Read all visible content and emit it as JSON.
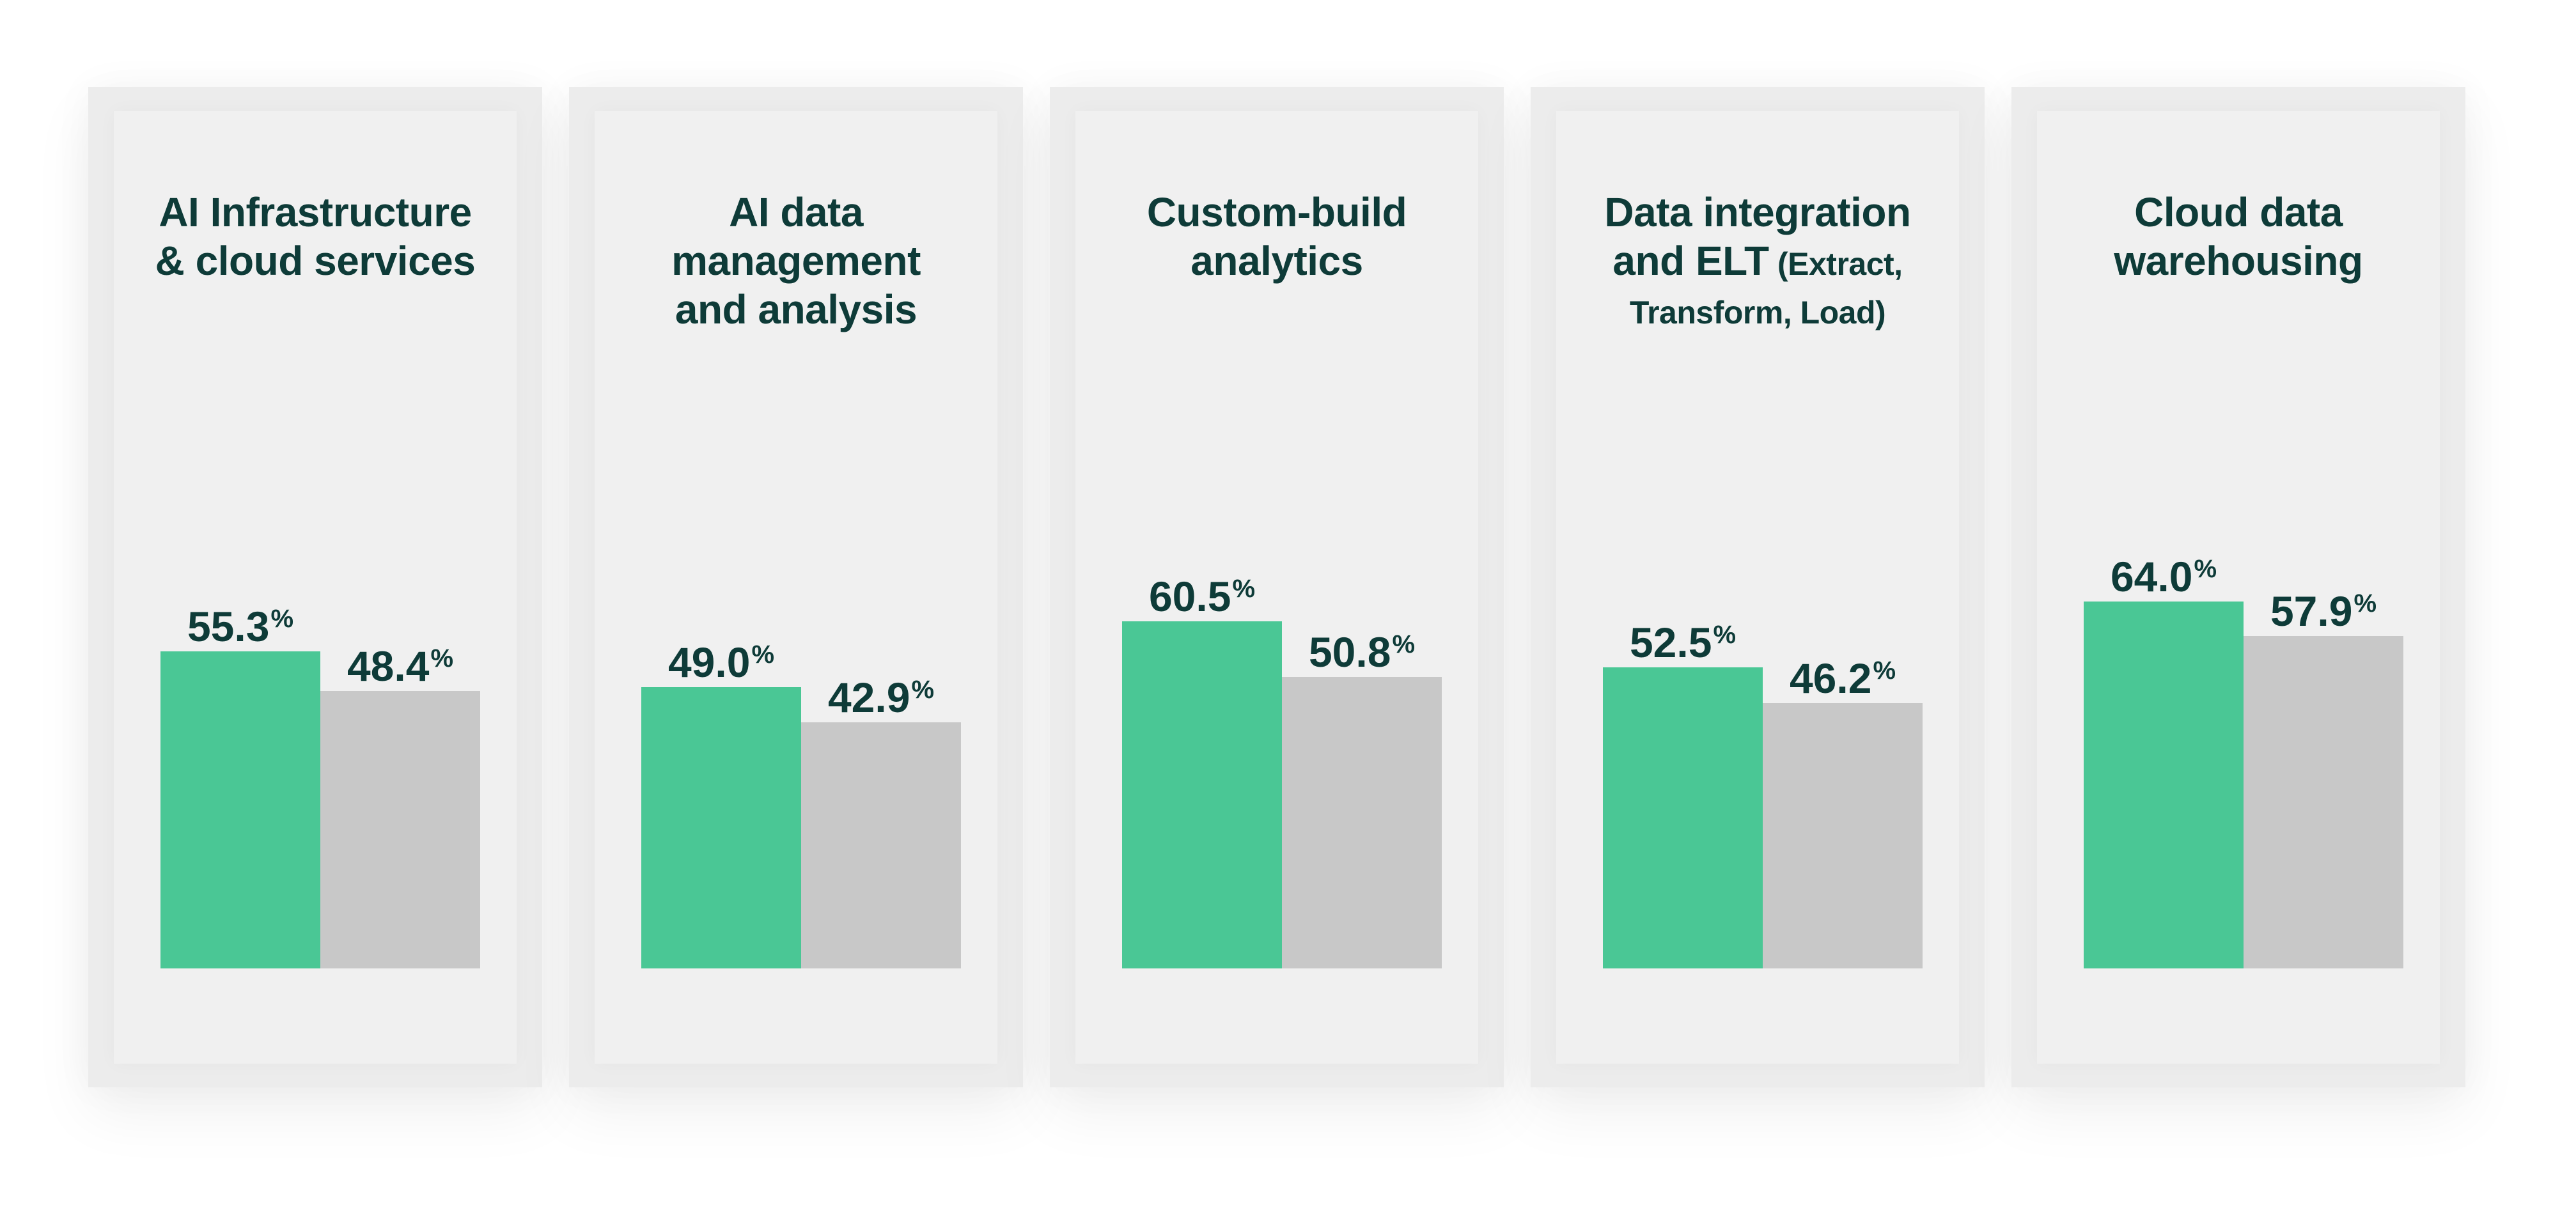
{
  "chart_data": {
    "type": "bar",
    "ylim": [
      0,
      100
    ],
    "value_suffix": "%",
    "colors": {
      "primary": "#4ac795",
      "secondary": "#c8c8c8",
      "text": "#0e3b38"
    },
    "panels": [
      {
        "title": [
          "AI Infrastructure",
          "& cloud services"
        ],
        "title_suffix": "",
        "values": [
          {
            "value": 55.3,
            "label": "55.3",
            "color": "#4ac795"
          },
          {
            "value": 48.4,
            "label": "48.4",
            "color": "#c8c8c8"
          }
        ]
      },
      {
        "title": [
          "AI data",
          "management",
          "and analysis"
        ],
        "title_suffix": "",
        "values": [
          {
            "value": 49.0,
            "label": "49.0",
            "color": "#4ac795"
          },
          {
            "value": 42.9,
            "label": "42.9",
            "color": "#c8c8c8"
          }
        ]
      },
      {
        "title": [
          "Custom-build",
          "analytics"
        ],
        "title_suffix": "",
        "values": [
          {
            "value": 60.5,
            "label": "60.5",
            "color": "#4ac795"
          },
          {
            "value": 50.8,
            "label": "50.8",
            "color": "#c8c8c8"
          }
        ]
      },
      {
        "title": [
          "Data integration",
          "and ELT"
        ],
        "title_suffix": "(Extract,",
        "title_suffix_line": "Transform, Load)",
        "values": [
          {
            "value": 52.5,
            "label": "52.5",
            "color": "#4ac795"
          },
          {
            "value": 46.2,
            "label": "46.2",
            "color": "#c8c8c8"
          }
        ]
      },
      {
        "title": [
          "Cloud data",
          "warehousing"
        ],
        "title_suffix": "",
        "values": [
          {
            "value": 64.0,
            "label": "64.0",
            "color": "#4ac795"
          },
          {
            "value": 57.9,
            "label": "57.9",
            "color": "#c8c8c8"
          }
        ]
      }
    ]
  }
}
